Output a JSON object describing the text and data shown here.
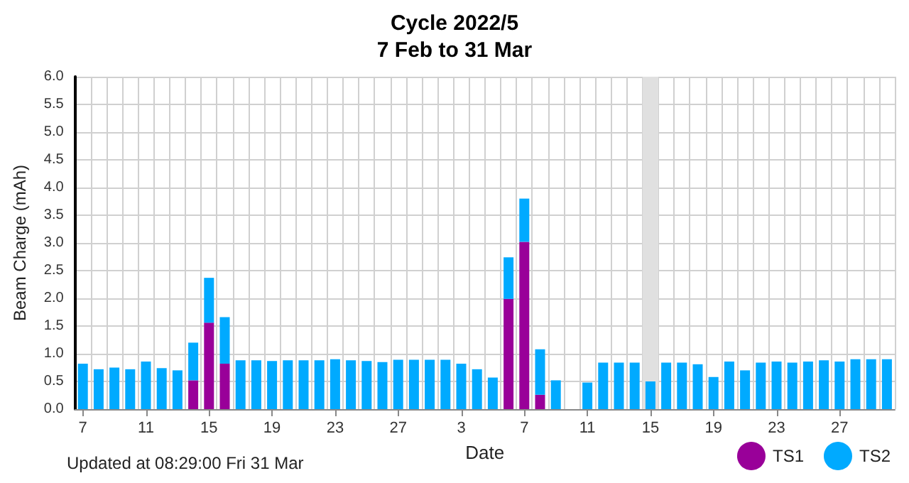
{
  "chart_data": {
    "type": "bar",
    "title": "Cycle 2022/5",
    "subtitle": "7 Feb to 31 Mar",
    "xlabel": "Date",
    "ylabel": "Beam Charge (mAh)",
    "annotations": [
      "Updated at 08:29:00 Fri 31 Mar"
    ],
    "x": [
      "--02-07",
      "--02-08",
      "--02-09",
      "--02-10",
      "--02-11",
      "--02-12",
      "--02-13",
      "--02-14",
      "--02-15",
      "--02-16",
      "--02-17",
      "--02-18",
      "--02-19",
      "--02-20",
      "--02-21",
      "--02-22",
      "--02-23",
      "--02-24",
      "--02-25",
      "--02-26",
      "--02-27",
      "--02-28",
      "--03-01",
      "--03-02",
      "--03-03",
      "--03-04",
      "--03-05",
      "--03-06",
      "--03-07",
      "--03-08",
      "--03-09",
      "--03-10",
      "--03-11",
      "--03-12",
      "--03-13",
      "--03-14",
      "--03-15",
      "--03-16",
      "--03-17",
      "--03-18",
      "--03-19",
      "--03-20",
      "--03-21",
      "--03-22",
      "--03-23",
      "--03-24",
      "--03-25",
      "--03-26",
      "--03-27",
      "--03-28",
      "--03-29",
      "--03-30"
    ],
    "xticks": [
      {
        "value": "--02-07",
        "label": "7"
      },
      {
        "value": "--02-11",
        "label": "11"
      },
      {
        "value": "--02-15",
        "label": "15"
      },
      {
        "value": "--02-19",
        "label": "19"
      },
      {
        "value": "--02-23",
        "label": "23"
      },
      {
        "value": "--02-27",
        "label": "27"
      },
      {
        "value": "--03-03",
        "label": "3"
      },
      {
        "value": "--03-07",
        "label": "7"
      },
      {
        "value": "--03-11",
        "label": "11"
      },
      {
        "value": "--03-15",
        "label": "15"
      },
      {
        "value": "--03-19",
        "label": "19"
      },
      {
        "value": "--03-23",
        "label": "23"
      },
      {
        "value": "--03-27",
        "label": "27"
      }
    ],
    "series": [
      {
        "name": "TS1",
        "color": "#990099",
        "values": [
          null,
          null,
          null,
          null,
          null,
          null,
          null,
          0.52,
          1.56,
          0.82,
          null,
          null,
          null,
          null,
          null,
          null,
          null,
          null,
          null,
          null,
          null,
          null,
          null,
          null,
          null,
          null,
          null,
          1.99,
          3.02,
          0.26,
          null,
          null,
          null,
          null,
          null,
          null,
          null,
          null,
          null,
          null,
          null,
          null,
          null,
          null,
          null,
          null,
          null,
          null,
          null,
          null,
          null,
          null
        ]
      },
      {
        "name": "TS2",
        "color": "#00aaff",
        "values": [
          0.82,
          0.72,
          0.75,
          0.72,
          0.86,
          0.74,
          0.7,
          0.68,
          0.81,
          0.84,
          0.88,
          0.88,
          0.87,
          0.88,
          0.88,
          0.88,
          0.9,
          0.88,
          0.87,
          0.85,
          0.89,
          0.89,
          0.89,
          0.89,
          0.82,
          0.72,
          0.57,
          0.75,
          0.78,
          0.82,
          0.52,
          null,
          0.48,
          0.84,
          0.84,
          0.84,
          0.5,
          0.84,
          0.84,
          0.81,
          0.58,
          0.86,
          0.7,
          0.84,
          0.86,
          0.84,
          0.86,
          0.88,
          0.86,
          0.9,
          0.9,
          0.9
        ]
      }
    ],
    "stacked": true,
    "xlim": [
      "--02-06T12:00",
      "--03-30T12:00"
    ],
    "bands": [
      {
        "axis": "x",
        "from": "--03-14T12:00",
        "to": "--03-15T12:00",
        "color": "#e0e0e0"
      }
    ],
    "ylim": [
      0,
      6
    ],
    "yticks": [
      {
        "value": 0,
        "label": "0.0"
      },
      0.5,
      {
        "value": 1,
        "label": "1.0"
      },
      1.5,
      {
        "value": 2,
        "label": "2.0"
      },
      2.5,
      {
        "value": 3,
        "label": "3.0"
      },
      3.5,
      {
        "value": 4,
        "label": "4.0"
      },
      4.5,
      {
        "value": 5,
        "label": "5.0"
      },
      5.5,
      {
        "value": 6,
        "label": "6.0"
      }
    ],
    "grid": true,
    "legend": "bottom right"
  }
}
